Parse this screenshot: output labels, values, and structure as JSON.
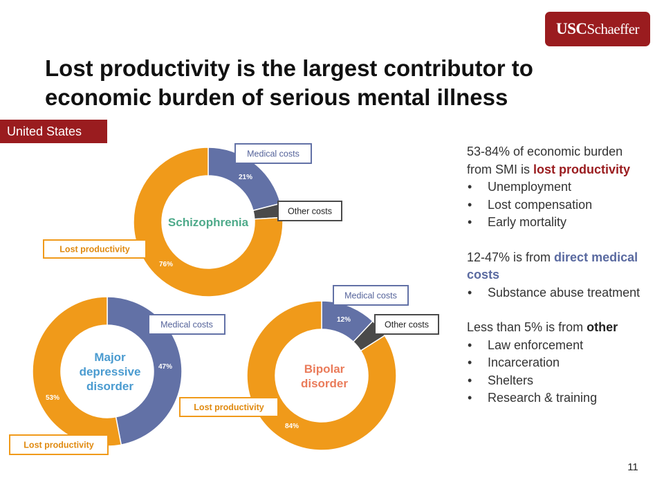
{
  "logo": {
    "usc": "USC",
    "schaeffer": "Schaeffer"
  },
  "title": {
    "line1": "Lost productivity is the largest contributor to",
    "line2": "economic burden of serious mental illness"
  },
  "region_label": "United States",
  "colors": {
    "medical": "#6271a6",
    "other": "#4a4a4a",
    "productivity": "#f09a1a",
    "brand": "#9a1c1f"
  },
  "chart_data": [
    {
      "type": "pie",
      "title": "Schizophrenia",
      "categories": [
        "Medical costs",
        "Other costs",
        "Lost productivity"
      ],
      "values": [
        21,
        3,
        76
      ],
      "data_labels": [
        "21%",
        "",
        "76%"
      ],
      "title_color": "#4eaa8a"
    },
    {
      "type": "pie",
      "title": "Major depressive disorder",
      "categories": [
        "Medical costs",
        "Lost productivity"
      ],
      "values": [
        47,
        53
      ],
      "data_labels": [
        "47%",
        "53%"
      ],
      "title_color": "#4a9bd0"
    },
    {
      "type": "pie",
      "title": "Bipolar disorder",
      "categories": [
        "Medical costs",
        "Other costs",
        "Lost productivity"
      ],
      "values": [
        12,
        4,
        84
      ],
      "data_labels": [
        "12%",
        "",
        "84%"
      ],
      "title_color": "#ea7b5a"
    }
  ],
  "text_panel": {
    "section1_intro": "53-84% of economic burden from SMI is ",
    "section1_highlight": "lost productivity",
    "section1_items": [
      "Unemployment",
      "Lost compensation",
      "Early mortality"
    ],
    "section2_intro": "12-47% is from ",
    "section2_highlight": "direct medical costs",
    "section2_items": [
      "Substance abuse treatment"
    ],
    "section3_intro": "Less than 5% is from ",
    "section3_highlight": "other",
    "section3_items": [
      "Law enforcement",
      "Incarceration",
      "Shelters",
      "Research & training"
    ]
  },
  "page_number": "11"
}
